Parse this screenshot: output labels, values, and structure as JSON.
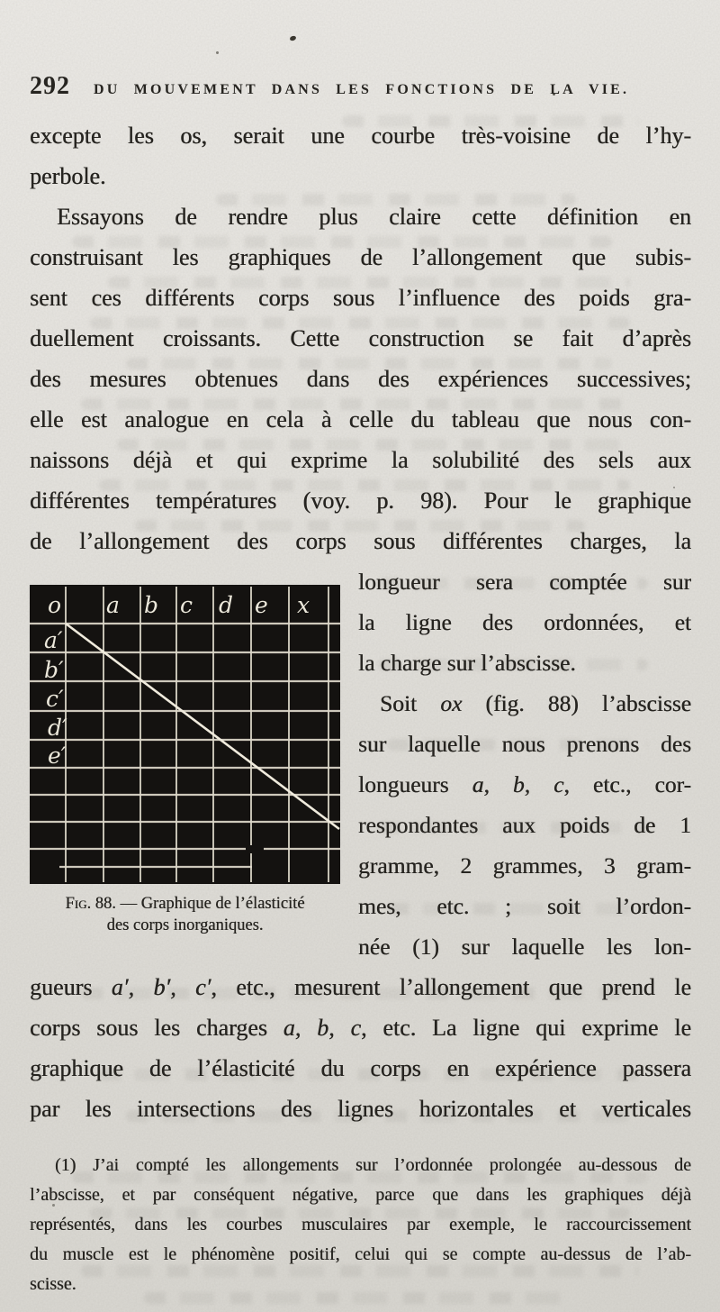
{
  "page": {
    "number": "292",
    "running_title": "DU MOUVEMENT DANS LES FONCTIONS DE LA VIE."
  },
  "body": {
    "p1": [
      [
        {
          "t": "excepte les os, serait une courbe très-voisine de l’hy-"
        }
      ],
      [
        {
          "t": "perbole."
        }
      ]
    ],
    "p2": [
      [
        {
          "t": "Essayons de rendre plus claire cette définition en"
        }
      ],
      [
        {
          "t": "construisant les graphiques de l’allongement que subis-"
        }
      ],
      [
        {
          "t": "sent ces différents corps sous l’influence des poids gra-"
        }
      ],
      [
        {
          "t": "duellement croissants. Cette construction se fait d’après"
        }
      ],
      [
        {
          "t": "des mesures obtenues dans des expériences successives;"
        }
      ],
      [
        {
          "t": "elle est analogue en cela à celle du tableau que nous con-"
        }
      ],
      [
        {
          "t": "naissons déjà et qui exprime la solubilité des sels aux"
        }
      ],
      [
        {
          "t": "différentes températures (voy. p. 98). Pour le graphique"
        }
      ],
      [
        {
          "t": "de l’allongement des corps sous différentes charges, la"
        }
      ]
    ],
    "right_col": [
      [
        {
          "t": "longueur sera comptée sur"
        }
      ],
      [
        {
          "t": "la ligne des ordonnées, et"
        }
      ],
      [
        {
          "t": "la charge sur l’abscisse."
        }
      ],
      [
        {
          "t": "Soit "
        },
        {
          "t": "ox",
          "i": true
        },
        {
          "t": " (fig. 88) l’abscisse"
        }
      ],
      [
        {
          "t": "sur laquelle nous prenons des"
        }
      ],
      [
        {
          "t": "longueurs "
        },
        {
          "t": "a, b, c",
          "i": true
        },
        {
          "t": ", etc., cor-"
        }
      ],
      [
        {
          "t": "respondantes aux poids de 1"
        }
      ],
      [
        {
          "t": "gramme, 2 grammes, 3 gram-"
        }
      ],
      [
        {
          "t": "mes, etc. ; soit l’ordon-"
        }
      ],
      [
        {
          "t": "née (1) sur laquelle les lon-"
        }
      ]
    ],
    "p3": [
      [
        {
          "t": "gueurs "
        },
        {
          "t": "a′, b′, c′",
          "i": true
        },
        {
          "t": ", etc., mesurent l’allongement que prend le"
        }
      ],
      [
        {
          "t": "corps sous les charges "
        },
        {
          "t": "a, b, c",
          "i": true
        },
        {
          "t": ", etc. La ligne qui exprime le"
        }
      ],
      [
        {
          "t": "graphique de l’élasticité du corps en expérience passera"
        }
      ],
      [
        {
          "t": "par les intersections des lignes horizontales et verticales"
        }
      ]
    ],
    "footnote": [
      [
        {
          "t": "(1) J’ai compté les allongements sur l’ordonnée prolongée au-dessous de"
        }
      ],
      [
        {
          "t": "l’abscisse, et par conséquent négative, parce que dans les graphiques déjà"
        }
      ],
      [
        {
          "t": "représentés, dans les courbes musculaires par exemple, le raccourcissement"
        }
      ],
      [
        {
          "t": "du muscle est le phénomène positif, celui qui se compte au-dessus de l’ab-"
        }
      ],
      [
        {
          "t": "scisse."
        }
      ]
    ]
  },
  "figure": {
    "x_labels": [
      "o",
      "a",
      "b",
      "c",
      "d",
      "e",
      "x"
    ],
    "y_labels": [
      "a′",
      "b′",
      "c′",
      "d′",
      "e′"
    ],
    "caption": [
      [
        {
          "t": "Fig. 88.",
          "sc": true
        },
        {
          "t": " — Graphique de l’élasticité"
        }
      ],
      [
        {
          "t": "des corps inorganiques."
        }
      ]
    ],
    "colors": {
      "plate_black": "#141210",
      "grid_line": "#ddd8ca",
      "diagonal": "#f0ebdd",
      "label": "#ece8db"
    },
    "chart_data": {
      "type": "line",
      "title": "Graphique de l’élasticité des corps inorganiques (Fig. 88)",
      "x_axis_labels": [
        "o",
        "a",
        "b",
        "c",
        "d",
        "e",
        "x"
      ],
      "y_axis_labels": [
        "a′",
        "b′",
        "c′",
        "d′",
        "e′"
      ],
      "x": [
        0,
        1,
        2,
        3,
        4,
        5,
        6,
        7
      ],
      "y": [
        0,
        -1,
        -2,
        -3,
        -4,
        -5,
        -6,
        -7
      ],
      "grid": true,
      "description": "Ligne droite diagonale partant de l’origine o (en haut à gauche) et descendant vers la droite, passant par les intersections des lignes horizontales (a′,b′,c′,d′,e′) et verticales (a,b,c,d,e,x) d’une grille blanche sur fond noir."
    }
  }
}
